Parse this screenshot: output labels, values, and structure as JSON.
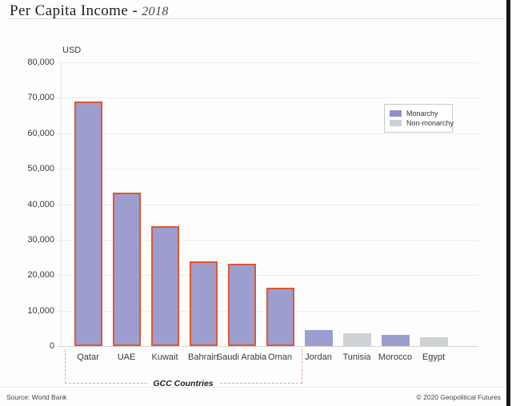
{
  "title": {
    "main": "Per Capita Income -",
    "year": "2018"
  },
  "chart_data": {
    "type": "bar",
    "unit_label": "USD",
    "ylim": [
      0,
      80000
    ],
    "yticks": [
      "80,000",
      "70,000",
      "60,000",
      "50,000",
      "40,000",
      "30,000",
      "20,000",
      "10,000",
      "0"
    ],
    "grid": true,
    "categories": [
      "Qatar",
      "UAE",
      "Kuwait",
      "Bahrain",
      "Saudi Arabia",
      "Oman",
      "Jordan",
      "Tunisia",
      "Morocco",
      "Egypt"
    ],
    "values": [
      69000,
      43200,
      33900,
      24000,
      23200,
      16400,
      4400,
      3500,
      3200,
      2500
    ],
    "monarchy": [
      true,
      true,
      true,
      true,
      true,
      true,
      true,
      false,
      true,
      false
    ],
    "gcc": [
      true,
      true,
      true,
      true,
      true,
      true,
      false,
      false,
      false,
      false
    ],
    "group_label": "GCC Countries",
    "legend": [
      {
        "label": "Monarchy",
        "color": "#8f90c6"
      },
      {
        "label": "Non-monarchy",
        "color": "#ccd0d3"
      }
    ],
    "legend_position": "upper-right",
    "colors": {
      "monarchy_fill": "#9d9ed0",
      "non_monarchy_fill": "#ced2d5",
      "gcc_outline": "#e2562e",
      "bracket": "#f1a593"
    }
  },
  "footer": {
    "source": "Source: World Bank",
    "copyright": "© 2020 Geopolitical Futures"
  }
}
